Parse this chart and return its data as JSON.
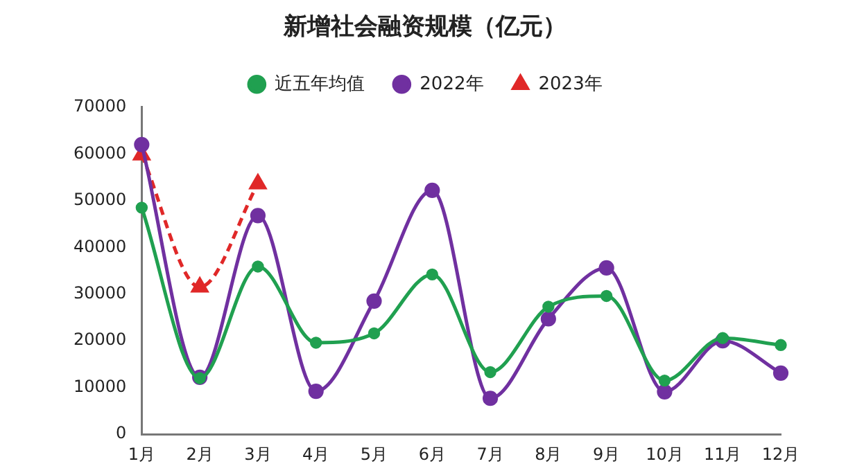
{
  "chart_data": {
    "type": "line",
    "title": "新增社会融资规模（亿元）",
    "categories": [
      "1月",
      "2月",
      "3月",
      "4月",
      "5月",
      "6月",
      "7月",
      "8月",
      "9月",
      "10月",
      "11月",
      "12月"
    ],
    "series": [
      {
        "name": "2023年",
        "color": "#e02828",
        "marker": "triangle",
        "line_style": "dashed",
        "values": [
          59800,
          31500,
          53600,
          null,
          null,
          null,
          null,
          null,
          null,
          null,
          null,
          null
        ]
      },
      {
        "name": "2022年",
        "color": "#7030a0",
        "marker": "circle",
        "line_style": "solid",
        "values": [
          62000,
          12200,
          46800,
          9200,
          28500,
          52200,
          7700,
          24700,
          35600,
          9100,
          20000,
          13100
        ]
      },
      {
        "name": "近五年均值",
        "color": "#20a050",
        "marker": "circle",
        "line_style": "solid",
        "values": [
          48500,
          12000,
          35900,
          19600,
          21600,
          34200,
          13300,
          27300,
          29600,
          11500,
          20600,
          19100
        ]
      }
    ],
    "ylim": [
      0,
      70000
    ],
    "yticks": [
      0,
      10000,
      20000,
      30000,
      40000,
      50000,
      60000,
      70000
    ],
    "grid": false,
    "legend": "top"
  }
}
